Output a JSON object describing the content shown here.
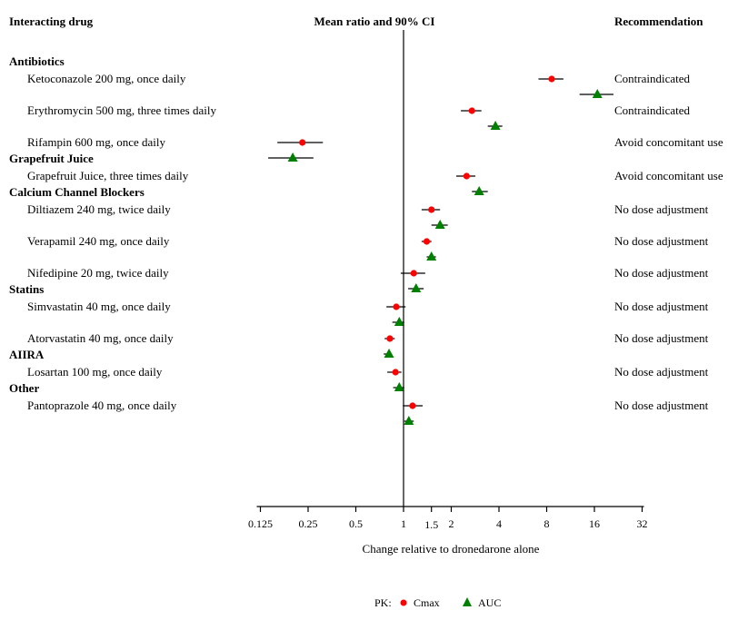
{
  "chart_data": {
    "type": "scatter",
    "subtype": "forest-plot",
    "title": "",
    "headers": {
      "left": "Interacting drug",
      "center": "Mean ratio and 90% CI",
      "right": "Recommendation"
    },
    "xlabel": "Change relative to dronedarone alone",
    "xscale": "log2",
    "xlim": [
      0.125,
      32
    ],
    "reference_line": 1,
    "xticks": [
      0.125,
      0.25,
      0.5,
      1,
      1.5,
      2,
      4,
      8,
      16,
      32
    ],
    "xtick_labels": [
      "0.125",
      "0.25",
      "0.5",
      "1",
      "1.5",
      "2",
      "4",
      "8",
      "16",
      "32"
    ],
    "grid": false,
    "legend": {
      "placement": "bottom-center",
      "title": "PK:",
      "entries": [
        {
          "name": "Cmax",
          "marker": "circle",
          "color": "#ff0000"
        },
        {
          "name": "AUC",
          "marker": "triangle",
          "color": "#008000"
        }
      ]
    },
    "groups": [
      {
        "name": "Antibiotics",
        "drugs": [
          {
            "label": "Ketoconazole 200 mg, once daily",
            "recommendation": "Contraindicated",
            "cmax": {
              "mean": 8.6,
              "lo": 7.1,
              "hi": 10.2
            },
            "auc": {
              "mean": 16.7,
              "lo": 12.9,
              "hi": 21.1
            }
          },
          {
            "label": "Erythromycin 500 mg, three times daily",
            "recommendation": "Contraindicated",
            "cmax": {
              "mean": 2.7,
              "lo": 2.3,
              "hi": 3.1
            },
            "auc": {
              "mean": 3.8,
              "lo": 3.4,
              "hi": 4.2
            }
          },
          {
            "label": "Rifampin 600 mg, once daily",
            "recommendation": "Avoid concomitant use",
            "cmax": {
              "mean": 0.23,
              "lo": 0.16,
              "hi": 0.31
            },
            "auc": {
              "mean": 0.2,
              "lo": 0.14,
              "hi": 0.27
            }
          }
        ]
      },
      {
        "name": "Grapefruit Juice",
        "drugs": [
          {
            "label": "Grapefruit Juice, three times daily",
            "recommendation": "Avoid concomitant use",
            "cmax": {
              "mean": 2.5,
              "lo": 2.15,
              "hi": 2.84
            },
            "auc": {
              "mean": 3.0,
              "lo": 2.7,
              "hi": 3.4
            }
          }
        ]
      },
      {
        "name": "Calcium Channel Blockers",
        "drugs": [
          {
            "label": "Diltiazem 240 mg, twice daily",
            "recommendation": "No dose adjustment",
            "cmax": {
              "mean": 1.5,
              "lo": 1.3,
              "hi": 1.7
            },
            "auc": {
              "mean": 1.7,
              "lo": 1.5,
              "hi": 1.9
            }
          },
          {
            "label": "Verapamil 240 mg, once daily",
            "recommendation": "No dose adjustment",
            "cmax": {
              "mean": 1.4,
              "lo": 1.3,
              "hi": 1.5
            },
            "auc": {
              "mean": 1.5,
              "lo": 1.4,
              "hi": 1.6
            }
          },
          {
            "label": "Nifedipine 20 mg, twice daily",
            "recommendation": "No dose adjustment",
            "cmax": {
              "mean": 1.16,
              "lo": 0.96,
              "hi": 1.37
            },
            "auc": {
              "mean": 1.2,
              "lo": 1.07,
              "hi": 1.34
            }
          }
        ]
      },
      {
        "name": "Statins",
        "drugs": [
          {
            "label": "Simvastatin 40 mg, once daily",
            "recommendation": "No dose adjustment",
            "cmax": {
              "mean": 0.9,
              "lo": 0.78,
              "hi": 1.03
            },
            "auc": {
              "mean": 0.94,
              "lo": 0.85,
              "hi": 1.01
            }
          },
          {
            "label": "Atorvastatin 40 mg, once daily",
            "recommendation": "No dose adjustment",
            "cmax": {
              "mean": 0.82,
              "lo": 0.76,
              "hi": 0.88
            },
            "auc": {
              "mean": 0.81,
              "lo": 0.75,
              "hi": 0.84
            }
          }
        ]
      },
      {
        "name": "AIIRA",
        "drugs": [
          {
            "label": "Losartan 100 mg, once daily",
            "recommendation": "No dose adjustment",
            "cmax": {
              "mean": 0.89,
              "lo": 0.79,
              "hi": 0.97
            },
            "auc": {
              "mean": 0.94,
              "lo": 0.86,
              "hi": 1.01
            }
          }
        ]
      },
      {
        "name": "Other",
        "drugs": [
          {
            "label": "Pantoprazole 40 mg, once daily",
            "recommendation": "No dose adjustment",
            "cmax": {
              "mean": 1.14,
              "lo": 0.99,
              "hi": 1.32
            },
            "auc": {
              "mean": 1.08,
              "lo": 1.01,
              "hi": 1.16
            }
          }
        ]
      }
    ]
  }
}
